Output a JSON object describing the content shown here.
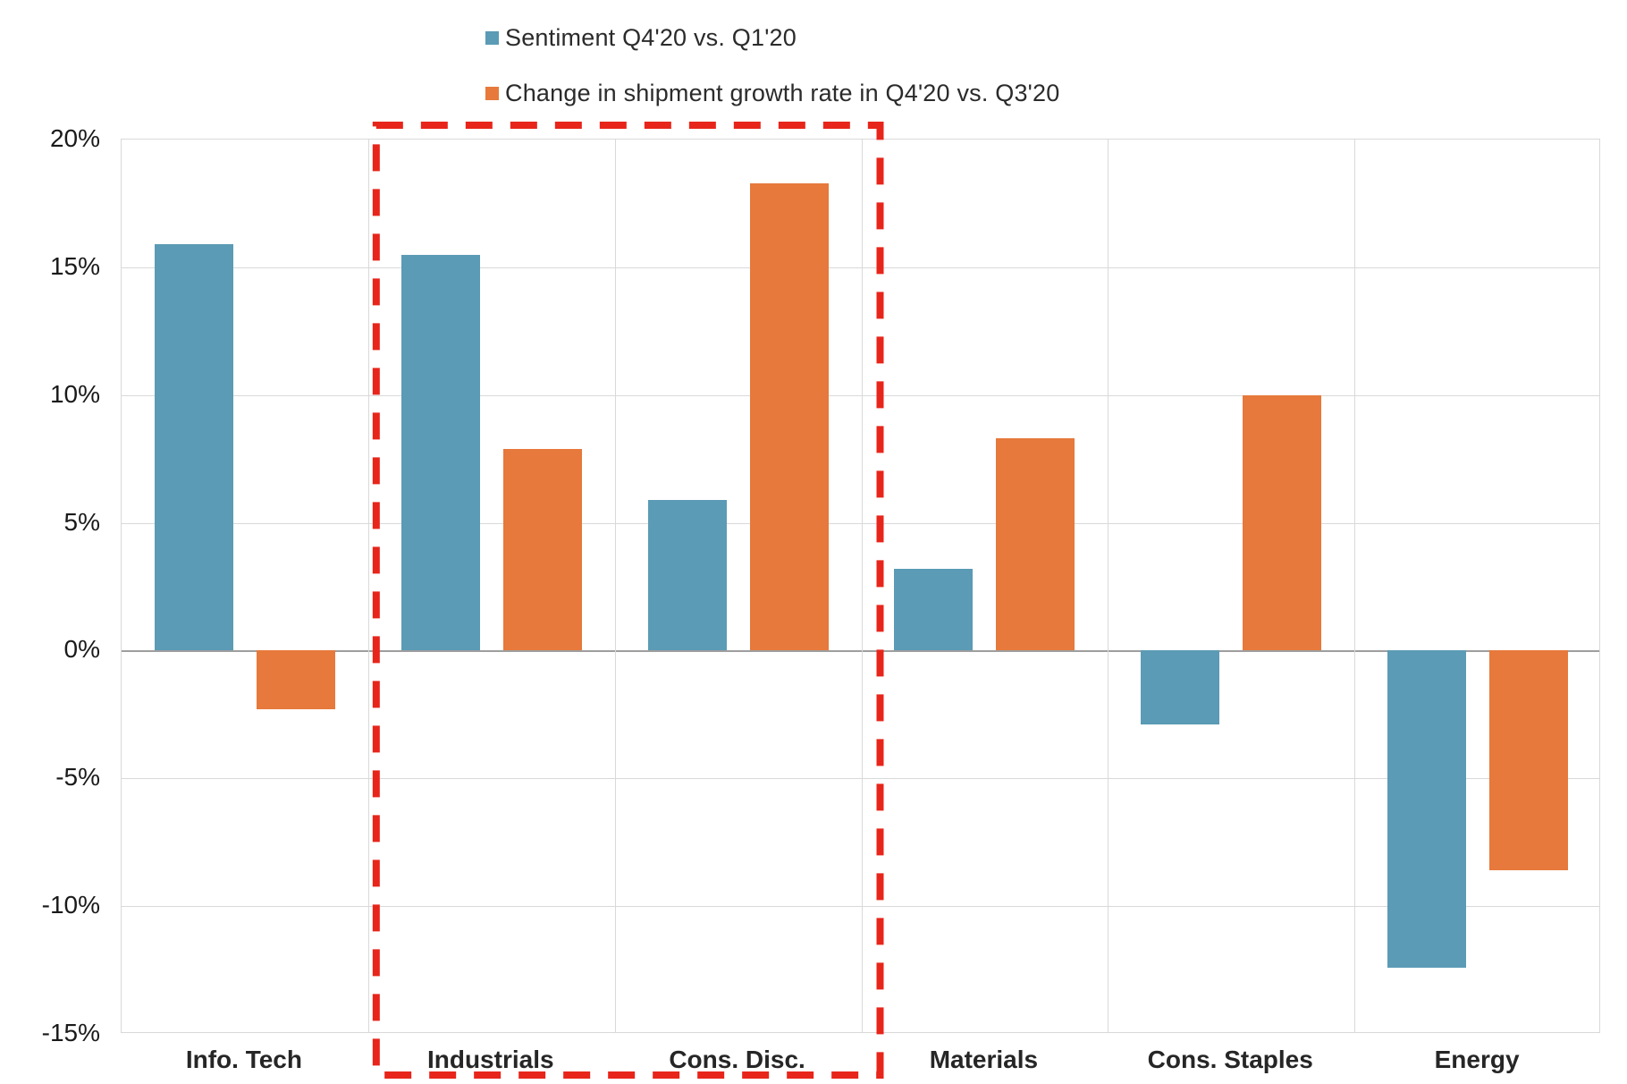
{
  "chart_data": {
    "type": "bar",
    "title": "",
    "categories": [
      "Info. Tech",
      "Industrials",
      "Cons. Disc.",
      "Materials",
      "Cons. Staples",
      "Energy"
    ],
    "series": [
      {
        "name": "Sentiment Q4'20 vs. Q1'20",
        "color": "#5b9bb5",
        "values": [
          15.9,
          15.5,
          5.9,
          3.2,
          -2.9,
          -12.4
        ]
      },
      {
        "name": "Change in shipment growth rate in Q4'20 vs. Q3'20",
        "color": "#e6793b",
        "values": [
          -2.3,
          7.9,
          18.3,
          8.3,
          10.0,
          -8.6
        ]
      }
    ],
    "xlabel": "",
    "ylabel": "",
    "ylim": [
      -15,
      20
    ],
    "ytick_step": 5,
    "ytick_labels": [
      "20%",
      "15%",
      "10%",
      "5%",
      "0%",
      "-5%",
      "-10%",
      "-15%"
    ],
    "grid": true,
    "legend_position": "top",
    "annotation": {
      "type": "highlight-box",
      "style": "red-dashed-rectangle",
      "categories_spanned": [
        "Industrials",
        "Cons. Disc."
      ],
      "color": "#e8251a"
    }
  }
}
